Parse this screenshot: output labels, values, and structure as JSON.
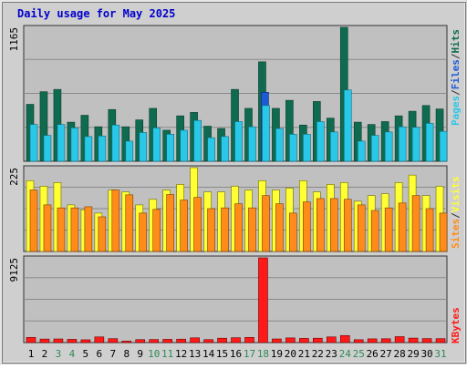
{
  "chart_data": {
    "type": "bar",
    "title": "Daily usage for May 2025",
    "days": [
      "1",
      "2",
      "3",
      "4",
      "5",
      "6",
      "7",
      "8",
      "9",
      "10",
      "11",
      "12",
      "13",
      "14",
      "15",
      "16",
      "17",
      "18",
      "19",
      "20",
      "21",
      "22",
      "23",
      "24",
      "25",
      "26",
      "27",
      "28",
      "29",
      "30",
      "31"
    ],
    "weekend_days": [
      "3",
      "4",
      "10",
      "11",
      "17",
      "18",
      "24",
      "25",
      "31"
    ],
    "panels": [
      {
        "max_label": "1165",
        "ylim": [
          0,
          1165
        ],
        "series": [
          {
            "name": "Hits",
            "color": "#0e6b4f",
            "values": [
              495,
              605,
              625,
              340,
              400,
              300,
              450,
              300,
              360,
              460,
              270,
              395,
              425,
              305,
              285,
              625,
              460,
              865,
              460,
              530,
              315,
              520,
              375,
              1165,
              340,
              320,
              345,
              395,
              435,
              485,
              455
            ]
          },
          {
            "name": "Files",
            "color": "#1d5ad6",
            "values": [
              0,
              0,
              0,
              0,
              0,
              0,
              0,
              0,
              0,
              0,
              0,
              0,
              0,
              0,
              0,
              0,
              0,
              600,
              0,
              0,
              0,
              0,
              0,
              0,
              0,
              0,
              0,
              0,
              0,
              0,
              0
            ]
          },
          {
            "name": "Pages",
            "color": "#29c8e8",
            "values": [
              320,
              225,
              320,
              290,
              215,
              220,
              315,
              175,
              250,
              290,
              235,
              270,
              355,
              205,
              215,
              345,
              300,
              485,
              285,
              235,
              235,
              345,
              255,
              620,
              175,
              225,
              255,
              300,
              295,
              330,
              260
            ]
          }
        ]
      },
      {
        "max_label": "225",
        "ylim": [
          0,
          225
        ],
        "series": [
          {
            "name": "Visits",
            "color": "#ffff33",
            "values": [
              190,
              175,
              185,
              125,
              112,
              103,
              165,
              160,
              125,
              140,
              165,
              180,
              225,
              160,
              160,
              175,
              165,
              190,
              165,
              170,
              190,
              160,
              180,
              185,
              135,
              150,
              155,
              185,
              205,
              150,
              175
            ]
          },
          {
            "name": "Sites",
            "color": "#ff8c1a",
            "values": [
              165,
              125,
              117,
              117,
              120,
              93,
              165,
              152,
              103,
              113,
              153,
              138,
              145,
              115,
              117,
              128,
              117,
              150,
              128,
              103,
              133,
              142,
              142,
              140,
              125,
              110,
              117,
              130,
              150,
              115,
              103
            ]
          }
        ]
      },
      {
        "max_label": "9125",
        "ylim": [
          0,
          9125
        ],
        "series": [
          {
            "name": "KBytes",
            "color": "#ff1a1a",
            "values": [
              560,
              380,
              390,
              350,
              300,
              610,
              420,
              160,
              320,
              330,
              350,
              370,
              510,
              320,
              470,
              520,
              560,
              9125,
              390,
              500,
              450,
              470,
              610,
              760,
              310,
              400,
              410,
              640,
              480,
              430,
              420
            ]
          }
        ]
      }
    ],
    "axis_labels": [
      {
        "text": "Pages",
        "color": "#29c8e8"
      },
      {
        "text": "/",
        "color": "#333333"
      },
      {
        "text": "Files",
        "color": "#1d5ad6"
      },
      {
        "text": "/",
        "color": "#333333"
      },
      {
        "text": "Hits",
        "color": "#0e6b4f"
      },
      {
        "text": "Sites",
        "color": "#ff8c1a"
      },
      {
        "text": "/",
        "color": "#333333"
      },
      {
        "text": "Visits",
        "color": "#ffff33"
      },
      {
        "text": "KBytes",
        "color": "#ff1a1a"
      }
    ],
    "colors": {
      "title": "#0000cc",
      "panel_bg": "#c0c0c0",
      "frame_bg": "#cfcfcf",
      "weekday_label": "#000000",
      "weekend_label": "#2e8b57",
      "gridline": "#8a8a8a"
    }
  }
}
